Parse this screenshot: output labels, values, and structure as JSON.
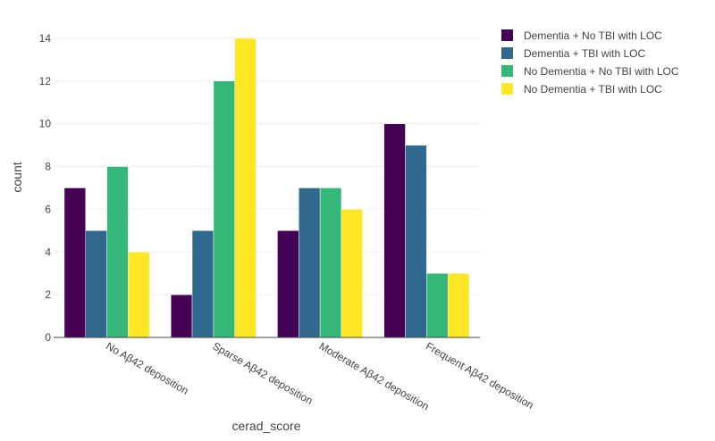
{
  "chart_data": {
    "type": "bar",
    "barmode": "grouped",
    "xlabel": "cerad_score",
    "ylabel": "count",
    "categories": [
      "No Aβ42 deposition",
      "Sparse Aβ42 deposition",
      "Moderate Aβ42 deposition",
      "Frequent Aβ42 deposition"
    ],
    "ylim": [
      0,
      15
    ],
    "yticks": [
      0,
      2,
      4,
      6,
      8,
      10,
      12,
      14
    ],
    "grid": true,
    "legend_position": "top-right",
    "series": [
      {
        "name": "Dementia + No TBI with LOC",
        "color": "#440154",
        "values": [
          7,
          2,
          5,
          10
        ]
      },
      {
        "name": "Dementia + TBI with LOC",
        "color": "#31688e",
        "values": [
          5,
          5,
          7,
          9
        ]
      },
      {
        "name": "No Dementia + No TBI with LOC",
        "color": "#35b779",
        "values": [
          8,
          12,
          7,
          3
        ]
      },
      {
        "name": "No Dementia + TBI with LOC",
        "color": "#fde725",
        "values": [
          4,
          14,
          6,
          3
        ]
      }
    ]
  }
}
